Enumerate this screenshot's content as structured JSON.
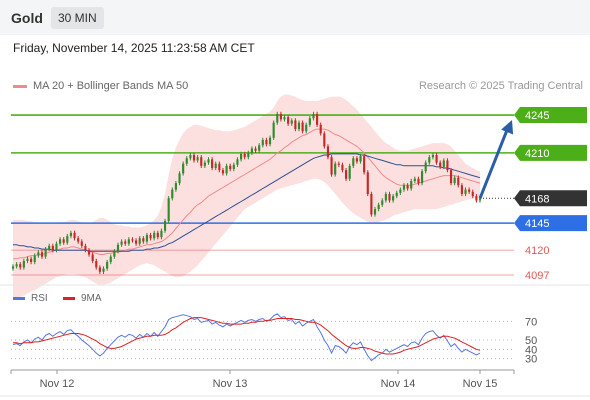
{
  "header": {
    "instrument": "Gold",
    "timeframe": "30 MIN"
  },
  "datetime": "Friday, November 14, 2025 11:23:58 AM CET",
  "legend": {
    "ma20": "MA 20 + Bollinger Bands",
    "ma50": "MA 50",
    "ma20_color": "#f08a8a",
    "ma50_color": "#2d4f91"
  },
  "credit": "Research © 2025 Trading Central",
  "rsi_legend": {
    "rsi": "RSI",
    "ma": "9MA",
    "rsi_color": "#5577dd",
    "ma_color": "#dd2222"
  },
  "chart_data": [
    {
      "type": "candlestick",
      "title": "",
      "ylim": [
        4085,
        4270
      ],
      "x_ticks": [
        "Nov 12",
        "Nov 13",
        "Nov 14",
        "Nov 15"
      ],
      "price_labels": [
        {
          "value": 4245,
          "text": "4245",
          "kind": "resistance",
          "color": "#4caf1a"
        },
        {
          "value": 4210,
          "text": "4210",
          "kind": "resistance",
          "color": "#4caf1a"
        },
        {
          "value": 4168,
          "text": "4168",
          "kind": "last",
          "color": "#333333"
        },
        {
          "value": 4145,
          "text": "4145",
          "kind": "support",
          "color": "#2f6fe6"
        },
        {
          "value": 4120,
          "text": "4120",
          "kind": "pivot",
          "color": "#e06060"
        },
        {
          "value": 4097,
          "text": "4097",
          "kind": "pivot",
          "color": "#e06060"
        }
      ],
      "close": [
        4105,
        4107,
        4104,
        4110,
        4112,
        4109,
        4115,
        4118,
        4114,
        4121,
        4124,
        4120,
        4126,
        4130,
        4127,
        4133,
        4136,
        4131,
        4128,
        4124,
        4120,
        4116,
        4110,
        4104,
        4100,
        4103,
        4109,
        4114,
        4119,
        4125,
        4128,
        4126,
        4130,
        4129,
        4126,
        4131,
        4128,
        4134,
        4131,
        4136,
        4132,
        4138,
        4147,
        4168,
        4176,
        4182,
        4191,
        4200,
        4205,
        4208,
        4203,
        4206,
        4198,
        4201,
        4204,
        4196,
        4200,
        4194,
        4191,
        4198,
        4195,
        4199,
        4204,
        4209,
        4206,
        4210,
        4214,
        4212,
        4217,
        4222,
        4218,
        4224,
        4238,
        4246,
        4241,
        4243,
        4237,
        4240,
        4232,
        4238,
        4230,
        4236,
        4242,
        4246,
        4236,
        4228,
        4216,
        4206,
        4190,
        4200,
        4199,
        4194,
        4186,
        4198,
        4205,
        4202,
        4207,
        4192,
        4172,
        4153,
        4158,
        4162,
        4166,
        4172,
        4166,
        4170,
        4173,
        4176,
        4180,
        4177,
        4184,
        4186,
        4182,
        4193,
        4201,
        4206,
        4208,
        4201,
        4197,
        4203,
        4194,
        4182,
        4187,
        4180,
        4172,
        4176,
        4174,
        4170,
        4166,
        4168
      ],
      "ma20": [
        4112,
        4112,
        4113,
        4113,
        4114,
        4115,
        4115,
        4116,
        4116,
        4117,
        4118,
        4119,
        4120,
        4121,
        4122,
        4122,
        4123,
        4123,
        4122,
        4121,
        4120,
        4119,
        4118,
        4117,
        4116,
        4116,
        4117,
        4117,
        4118,
        4118,
        4119,
        4120,
        4121,
        4121,
        4122,
        4123,
        4124,
        4125,
        4125,
        4126,
        4127,
        4128,
        4130,
        4133,
        4136,
        4140,
        4144,
        4148,
        4152,
        4155,
        4159,
        4162,
        4164,
        4167,
        4170,
        4172,
        4174,
        4176,
        4178,
        4180,
        4182,
        4184,
        4186,
        4188,
        4190,
        4192,
        4194,
        4196,
        4198,
        4200,
        4202,
        4204,
        4207,
        4210,
        4212,
        4215,
        4217,
        4220,
        4222,
        4224,
        4226,
        4227,
        4229,
        4231,
        4232,
        4232,
        4232,
        4231,
        4229,
        4227,
        4226,
        4224,
        4222,
        4220,
        4218,
        4216,
        4213,
        4210,
        4206,
        4202,
        4198,
        4194,
        4190,
        4187,
        4185,
        4183,
        4181,
        4180,
        4180,
        4180,
        4180,
        4181,
        4182,
        4183,
        4184,
        4185,
        4186,
        4187,
        4188,
        4189,
        4189,
        4189,
        4189,
        4188,
        4187,
        4186,
        4185,
        4184,
        4183,
        4182
      ],
      "ma50": [
        4125,
        4125,
        4124,
        4124,
        4123,
        4123,
        4122,
        4122,
        4121,
        4121,
        4121,
        4120,
        4120,
        4120,
        4120,
        4120,
        4120,
        4120,
        4120,
        4120,
        4120,
        4119,
        4119,
        4119,
        4119,
        4119,
        4119,
        4119,
        4119,
        4119,
        4119,
        4119,
        4119,
        4120,
        4120,
        4120,
        4120,
        4121,
        4121,
        4122,
        4122,
        4123,
        4124,
        4126,
        4127,
        4129,
        4131,
        4133,
        4135,
        4137,
        4139,
        4141,
        4143,
        4145,
        4147,
        4149,
        4151,
        4153,
        4155,
        4157,
        4159,
        4161,
        4163,
        4165,
        4167,
        4169,
        4171,
        4173,
        4175,
        4177,
        4179,
        4181,
        4183,
        4185,
        4187,
        4189,
        4191,
        4193,
        4195,
        4197,
        4199,
        4201,
        4203,
        4205,
        4206,
        4207,
        4208,
        4208,
        4209,
        4209,
        4209,
        4209,
        4209,
        4209,
        4209,
        4209,
        4208,
        4208,
        4207,
        4206,
        4205,
        4204,
        4203,
        4202,
        4201,
        4200,
        4199,
        4199,
        4198,
        4198,
        4198,
        4198,
        4198,
        4198,
        4198,
        4198,
        4198,
        4197,
        4197,
        4196,
        4196,
        4195,
        4194,
        4193,
        4192,
        4191,
        4190,
        4189,
        4188,
        4187
      ],
      "upper_band": [
        4148,
        4148,
        4148,
        4148,
        4147,
        4147,
        4146,
        4146,
        4145,
        4145,
        4145,
        4145,
        4145,
        4146,
        4146,
        4147,
        4148,
        4148,
        4147,
        4146,
        4145,
        4145,
        4146,
        4148,
        4150,
        4150,
        4148,
        4146,
        4144,
        4143,
        4143,
        4142,
        4142,
        4141,
        4141,
        4141,
        4142,
        4143,
        4145,
        4148,
        4152,
        4160,
        4172,
        4190,
        4205,
        4215,
        4222,
        4228,
        4232,
        4234,
        4236,
        4236,
        4235,
        4234,
        4233,
        4232,
        4231,
        4231,
        4230,
        4230,
        4230,
        4231,
        4232,
        4233,
        4234,
        4236,
        4238,
        4240,
        4242,
        4244,
        4246,
        4248,
        4252,
        4258,
        4262,
        4264,
        4264,
        4263,
        4262,
        4260,
        4259,
        4258,
        4258,
        4258,
        4258,
        4259,
        4260,
        4261,
        4262,
        4262,
        4262,
        4261,
        4259,
        4256,
        4253,
        4250,
        4246,
        4242,
        4238,
        4234,
        4230,
        4226,
        4222,
        4219,
        4217,
        4215,
        4213,
        4212,
        4212,
        4212,
        4213,
        4214,
        4215,
        4216,
        4217,
        4218,
        4219,
        4219,
        4219,
        4219,
        4218,
        4216,
        4212,
        4208,
        4204,
        4200,
        4198,
        4196,
        4194,
        4193
      ],
      "lower_band": [
        4076,
        4076,
        4077,
        4078,
        4080,
        4082,
        4083,
        4085,
        4087,
        4089,
        4091,
        4093,
        4095,
        4096,
        4097,
        4098,
        4098,
        4098,
        4097,
        4096,
        4095,
        4093,
        4091,
        4089,
        4088,
        4088,
        4089,
        4090,
        4092,
        4094,
        4096,
        4098,
        4100,
        4102,
        4104,
        4106,
        4107,
        4108,
        4107,
        4106,
        4104,
        4102,
        4100,
        4098,
        4096,
        4095,
        4095,
        4096,
        4098,
        4100,
        4103,
        4106,
        4110,
        4114,
        4118,
        4122,
        4126,
        4130,
        4134,
        4138,
        4142,
        4146,
        4150,
        4154,
        4158,
        4160,
        4162,
        4164,
        4166,
        4168,
        4170,
        4172,
        4174,
        4176,
        4177,
        4178,
        4179,
        4180,
        4181,
        4182,
        4183,
        4184,
        4185,
        4186,
        4186,
        4185,
        4183,
        4180,
        4176,
        4172,
        4168,
        4164,
        4160,
        4157,
        4154,
        4152,
        4150,
        4148,
        4146,
        4145,
        4145,
        4146,
        4147,
        4148,
        4150,
        4152,
        4153,
        4154,
        4155,
        4156,
        4157,
        4158,
        4158,
        4158,
        4158,
        4158,
        4158,
        4158,
        4159,
        4160,
        4161,
        4162,
        4163,
        4164,
        4165,
        4166,
        4167,
        4168,
        4169,
        4170
      ]
    },
    {
      "type": "line",
      "title": "RSI",
      "ylim": [
        20,
        80
      ],
      "y_ticks": [
        "70",
        "50",
        "40",
        "30"
      ],
      "rsi": [
        45,
        46,
        44,
        48,
        50,
        47,
        51,
        53,
        50,
        55,
        57,
        54,
        57,
        59,
        56,
        60,
        61,
        57,
        54,
        50,
        47,
        44,
        40,
        36,
        33,
        36,
        41,
        45,
        49,
        53,
        55,
        53,
        56,
        55,
        52,
        56,
        53,
        57,
        54,
        58,
        54,
        59,
        64,
        72,
        74,
        75,
        76,
        77,
        76,
        75,
        72,
        73,
        69,
        70,
        71,
        67,
        69,
        66,
        64,
        67,
        65,
        67,
        69,
        71,
        69,
        71,
        72,
        70,
        72,
        73,
        70,
        72,
        76,
        78,
        74,
        75,
        71,
        72,
        67,
        70,
        65,
        68,
        70,
        72,
        64,
        58,
        50,
        44,
        36,
        44,
        43,
        40,
        36,
        43,
        47,
        45,
        48,
        40,
        33,
        28,
        31,
        34,
        36,
        40,
        37,
        39,
        41,
        43,
        45,
        43,
        47,
        48,
        45,
        52,
        57,
        59,
        60,
        55,
        52,
        55,
        49,
        43,
        46,
        41,
        37,
        40,
        38,
        36,
        34,
        36
      ],
      "ma9": [
        47,
        47,
        46,
        47,
        47,
        47,
        48,
        48,
        49,
        50,
        51,
        52,
        53,
        54,
        55,
        56,
        57,
        57,
        57,
        56,
        55,
        53,
        51,
        49,
        46,
        44,
        42,
        41,
        41,
        42,
        43,
        45,
        47,
        49,
        51,
        52,
        53,
        54,
        54,
        55,
        55,
        55,
        56,
        58,
        61,
        63,
        66,
        69,
        71,
        73,
        74,
        74,
        74,
        73,
        72,
        71,
        70,
        69,
        68,
        68,
        67,
        67,
        67,
        67,
        68,
        68,
        69,
        69,
        70,
        70,
        71,
        71,
        72,
        73,
        73,
        73,
        73,
        73,
        72,
        72,
        71,
        70,
        69,
        69,
        68,
        66,
        63,
        60,
        56,
        53,
        50,
        47,
        44,
        42,
        41,
        41,
        42,
        42,
        41,
        40,
        38,
        37,
        36,
        35,
        35,
        35,
        36,
        37,
        39,
        40,
        41,
        42,
        43,
        45,
        47,
        49,
        51,
        52,
        53,
        54,
        54,
        53,
        52,
        50,
        48,
        46,
        44,
        42,
        40,
        39
      ]
    }
  ]
}
